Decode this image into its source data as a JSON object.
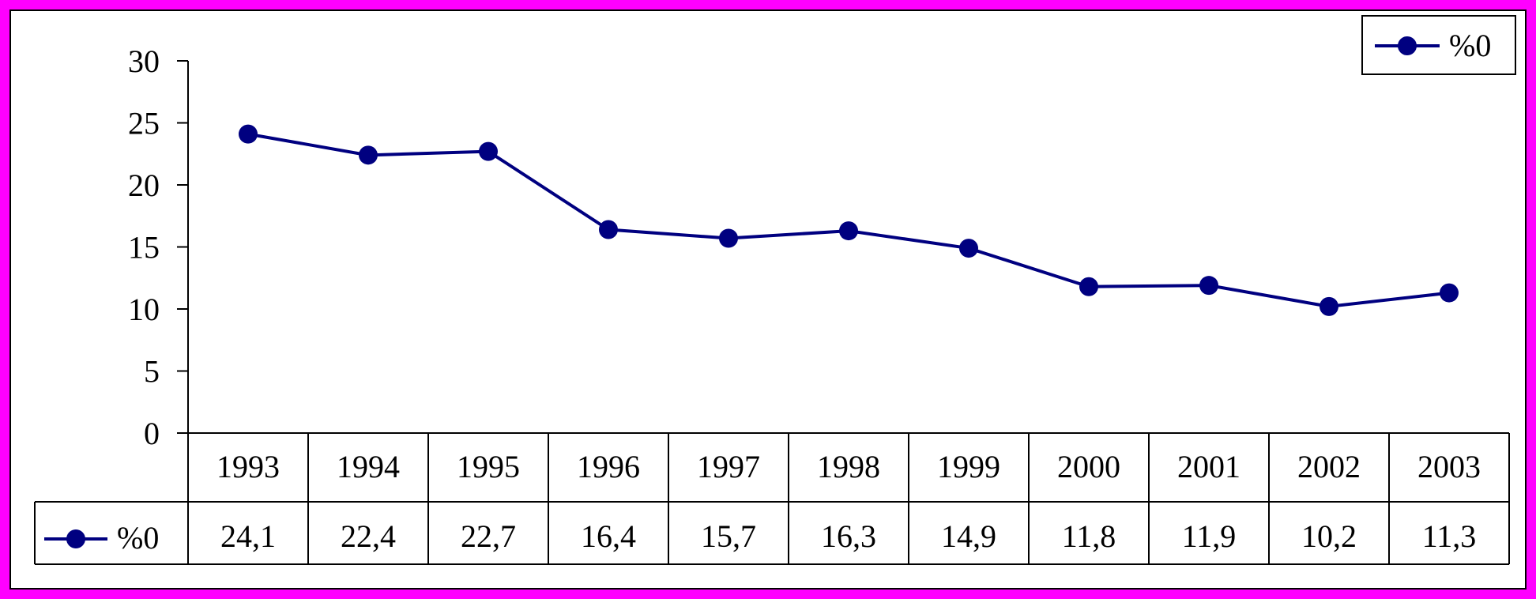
{
  "colors": {
    "background": "#ff00ff",
    "plot_background": "#ffffff",
    "series": "#000080",
    "axis": "#000000"
  },
  "chart_data": {
    "type": "line",
    "title": "",
    "xlabel": "",
    "ylabel": "",
    "categories": [
      "1993",
      "1994",
      "1995",
      "1996",
      "1997",
      "1998",
      "1999",
      "2000",
      "2001",
      "2002",
      "2003"
    ],
    "series": [
      {
        "name": "%0",
        "values": [
          24.1,
          22.4,
          22.7,
          16.4,
          15.7,
          16.3,
          14.9,
          11.8,
          11.9,
          10.2,
          11.3
        ],
        "value_labels": [
          "24,1",
          "22,4",
          "22,7",
          "16,4",
          "15,7",
          "16,3",
          "14,9",
          "11,8",
          "11,9",
          "10,2",
          "11,3"
        ]
      }
    ],
    "ylim": [
      0,
      30
    ],
    "yticks": [
      0,
      5,
      10,
      15,
      20,
      25,
      30
    ],
    "grid": false,
    "legend": {
      "position": "top-right",
      "label": "%0"
    },
    "data_table": true,
    "marker": "circle"
  }
}
